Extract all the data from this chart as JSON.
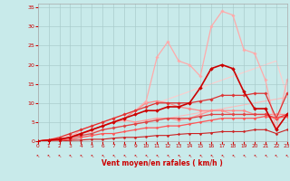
{
  "xlabel": "Vent moyen/en rafales ( km/h )",
  "xlim": [
    0,
    23
  ],
  "ylim": [
    0,
    36
  ],
  "yticks": [
    0,
    5,
    10,
    15,
    20,
    25,
    30,
    35
  ],
  "xticks": [
    0,
    1,
    2,
    3,
    4,
    5,
    6,
    7,
    8,
    9,
    10,
    11,
    12,
    13,
    14,
    15,
    16,
    17,
    18,
    19,
    20,
    21,
    22,
    23
  ],
  "background_color": "#c8eaea",
  "grid_color": "#aacccc",
  "series": [
    {
      "x": [
        0,
        1,
        2,
        3,
        4,
        5,
        6,
        7,
        8,
        9,
        10,
        11,
        12,
        13,
        14,
        15,
        16,
        17,
        18,
        19,
        20,
        21,
        22,
        23
      ],
      "y": [
        0,
        0.5,
        1,
        1.5,
        2,
        2.5,
        3,
        3.5,
        4,
        4.5,
        5,
        5.5,
        6,
        6.5,
        7,
        7.5,
        8,
        8.5,
        9,
        9.5,
        10,
        10.5,
        11,
        11.5
      ],
      "color": "#ffbbbb",
      "lw": 0.8,
      "marker": null,
      "zorder": 1
    },
    {
      "x": [
        0,
        1,
        2,
        3,
        4,
        5,
        6,
        7,
        8,
        9,
        10,
        11,
        12,
        13,
        14,
        15,
        16,
        17,
        18,
        19,
        20,
        21,
        22,
        23
      ],
      "y": [
        0,
        0.5,
        1,
        2,
        3,
        4,
        5,
        6,
        7,
        8,
        9,
        10,
        11,
        12,
        13,
        14,
        15,
        16,
        17,
        18,
        19,
        20,
        21,
        12
      ],
      "color": "#ffcccc",
      "lw": 0.8,
      "marker": null,
      "zorder": 1
    },
    {
      "x": [
        0,
        1,
        2,
        3,
        4,
        5,
        6,
        7,
        8,
        9,
        10,
        11,
        12,
        13,
        14,
        15,
        16,
        17,
        18,
        19,
        20,
        21,
        22,
        23
      ],
      "y": [
        0,
        0.3,
        0.5,
        1,
        2,
        3,
        4,
        5,
        5.5,
        5,
        5.5,
        6,
        6,
        5.5,
        6,
        7,
        8,
        8,
        7,
        7,
        7,
        7,
        6,
        7
      ],
      "color": "#ff9999",
      "lw": 0.9,
      "marker": "D",
      "ms": 1.8,
      "zorder": 2
    },
    {
      "x": [
        0,
        1,
        2,
        3,
        4,
        5,
        6,
        7,
        8,
        9,
        10,
        11,
        12,
        13,
        14,
        15,
        16,
        17,
        18,
        19,
        20,
        21,
        22,
        23
      ],
      "y": [
        0,
        0.3,
        0.5,
        1,
        2,
        3,
        4,
        5,
        6,
        8,
        10,
        10.5,
        10,
        9,
        8.5,
        8,
        8,
        8,
        8,
        8,
        7,
        7,
        7,
        7
      ],
      "color": "#ff8888",
      "lw": 0.9,
      "marker": "D",
      "ms": 1.8,
      "zorder": 2
    },
    {
      "x": [
        0,
        1,
        2,
        3,
        4,
        5,
        6,
        7,
        8,
        9,
        10,
        11,
        12,
        13,
        14,
        15,
        16,
        17,
        18,
        19,
        20,
        21,
        22,
        23
      ],
      "y": [
        0,
        0.3,
        0.5,
        1,
        2,
        3,
        4,
        5,
        6,
        7,
        8,
        8,
        9,
        9,
        10,
        14,
        19,
        20,
        19,
        13,
        8.5,
        8.5,
        3,
        7
      ],
      "color": "#cc0000",
      "lw": 1.2,
      "marker": "D",
      "ms": 2.0,
      "zorder": 4
    },
    {
      "x": [
        0,
        1,
        2,
        3,
        4,
        5,
        6,
        7,
        8,
        9,
        10,
        11,
        12,
        13,
        14,
        15,
        16,
        17,
        18,
        19,
        20,
        21,
        22,
        23
      ],
      "y": [
        0,
        0.3,
        0.5,
        1,
        1.5,
        2,
        3,
        3.5,
        4,
        4.5,
        5,
        5.5,
        6,
        6,
        6,
        6.5,
        7,
        7,
        7,
        7,
        7,
        7,
        6,
        7
      ],
      "color": "#dd4444",
      "lw": 0.9,
      "marker": "D",
      "ms": 1.8,
      "zorder": 3
    },
    {
      "x": [
        0,
        1,
        2,
        3,
        4,
        5,
        6,
        7,
        8,
        9,
        10,
        11,
        12,
        13,
        14,
        15,
        16,
        17,
        18,
        19,
        20,
        21,
        22,
        23
      ],
      "y": [
        0,
        0.3,
        0.5,
        1,
        3,
        4,
        5,
        6,
        7,
        8,
        10.5,
        22,
        26,
        21,
        20,
        17,
        30,
        34,
        33,
        24,
        23,
        16,
        3,
        16
      ],
      "color": "#ffaaaa",
      "lw": 0.9,
      "marker": "D",
      "ms": 1.8,
      "zorder": 2
    },
    {
      "x": [
        0,
        1,
        2,
        3,
        4,
        5,
        6,
        7,
        8,
        9,
        10,
        11,
        12,
        13,
        14,
        15,
        16,
        17,
        18,
        19,
        20,
        21,
        22,
        23
      ],
      "y": [
        0,
        0.3,
        1,
        2,
        3,
        4,
        5,
        6,
        7,
        8,
        9,
        10,
        10,
        10,
        10,
        10.5,
        11,
        12,
        12,
        12,
        12.5,
        12.5,
        6,
        12.5
      ],
      "color": "#dd3333",
      "lw": 0.9,
      "marker": "D",
      "ms": 1.8,
      "zorder": 3
    },
    {
      "x": [
        0,
        1,
        2,
        3,
        4,
        5,
        6,
        7,
        8,
        9,
        10,
        11,
        12,
        13,
        14,
        15,
        16,
        17,
        18,
        19,
        20,
        21,
        22,
        23
      ],
      "y": [
        0,
        0.2,
        0.3,
        0.5,
        1,
        1.5,
        2,
        2,
        2.5,
        3,
        3.5,
        3.5,
        4,
        4,
        4.5,
        5,
        5.5,
        6,
        6,
        6,
        6,
        6.5,
        6,
        6.5
      ],
      "color": "#ff5555",
      "lw": 0.9,
      "marker": "D",
      "ms": 1.5,
      "zorder": 3
    },
    {
      "x": [
        0,
        1,
        2,
        3,
        4,
        5,
        6,
        7,
        8,
        9,
        10,
        11,
        12,
        13,
        14,
        15,
        16,
        17,
        18,
        19,
        20,
        21,
        22,
        23
      ],
      "y": [
        0,
        0,
        0,
        0.2,
        0.3,
        0.5,
        0.5,
        0.8,
        1,
        1,
        1.2,
        1.5,
        1.5,
        1.8,
        2,
        2,
        2.2,
        2.5,
        2.5,
        2.5,
        3,
        3,
        2,
        3
      ],
      "color": "#cc2222",
      "lw": 0.8,
      "marker": "D",
      "ms": 1.5,
      "zorder": 3
    }
  ]
}
